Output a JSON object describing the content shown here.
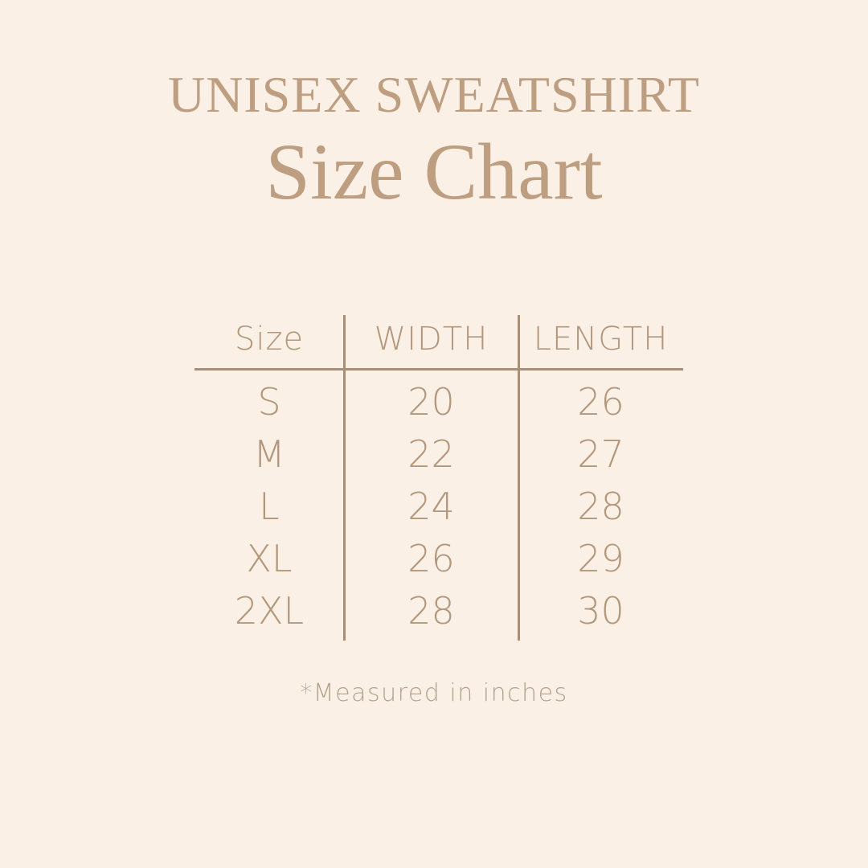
{
  "colors": {
    "background": "#faf0e5",
    "title": "#bd9e81",
    "table_text": "#b2977c",
    "line": "#a78e74",
    "footer": "#b5a28e"
  },
  "header": {
    "title": "UNISEX SWEATSHIRT",
    "subtitle": "Size Chart"
  },
  "table": {
    "columns": [
      "Size",
      "WIDTH",
      "LENGTH"
    ],
    "rows": [
      {
        "size": "S",
        "width": "20",
        "length": "26"
      },
      {
        "size": "M",
        "width": "22",
        "length": "27"
      },
      {
        "size": "L",
        "width": "24",
        "length": "28"
      },
      {
        "size": "XL",
        "width": "26",
        "length": "29"
      },
      {
        "size": "2XL",
        "width": "28",
        "length": "30"
      }
    ]
  },
  "footer": {
    "note": "*Measured in inches"
  },
  "chart_data": {
    "type": "table",
    "title": "UNISEX SWEATSHIRT Size Chart",
    "columns": [
      "Size",
      "WIDTH",
      "LENGTH"
    ],
    "rows": [
      [
        "S",
        20,
        26
      ],
      [
        "M",
        22,
        27
      ],
      [
        "L",
        24,
        28
      ],
      [
        "XL",
        26,
        29
      ],
      [
        "2XL",
        28,
        30
      ]
    ],
    "note": "*Measured in inches"
  }
}
